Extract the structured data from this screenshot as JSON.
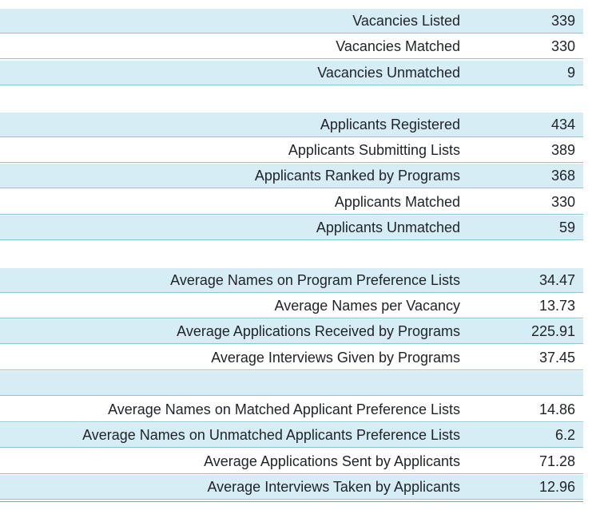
{
  "rows": [
    {
      "label": "Vacancies Listed",
      "value": "339"
    },
    {
      "label": "Vacancies Matched",
      "value": "330"
    },
    {
      "label": "Vacancies Unmatched",
      "value": "9"
    },
    {
      "label": "",
      "value": ""
    },
    {
      "label": "Applicants Registered",
      "value": "434"
    },
    {
      "label": "Applicants Submitting Lists",
      "value": "389"
    },
    {
      "label": "Applicants Ranked by Programs",
      "value": "368"
    },
    {
      "label": "Applicants Matched",
      "value": "330"
    },
    {
      "label": "Applicants Unmatched",
      "value": "59"
    },
    {
      "label": "",
      "value": ""
    },
    {
      "label": "Average Names on Program Preference Lists",
      "value": "34.47"
    },
    {
      "label": "Average Names per Vacancy",
      "value": "13.73"
    },
    {
      "label": "Average Applications Received by Programs",
      "value": "225.91"
    },
    {
      "label": "Average Interviews Given by Programs",
      "value": "37.45"
    },
    {
      "label": "",
      "value": ""
    },
    {
      "label": "Average Names on Matched Applicant Preference Lists",
      "value": "14.86"
    },
    {
      "label": "Average Names on Unmatched Applicants Preference Lists",
      "value": "6.2"
    },
    {
      "label": "Average Applications Sent by Applicants",
      "value": "71.28"
    },
    {
      "label": "Average Interviews Taken by Applicants",
      "value": "12.96"
    }
  ]
}
